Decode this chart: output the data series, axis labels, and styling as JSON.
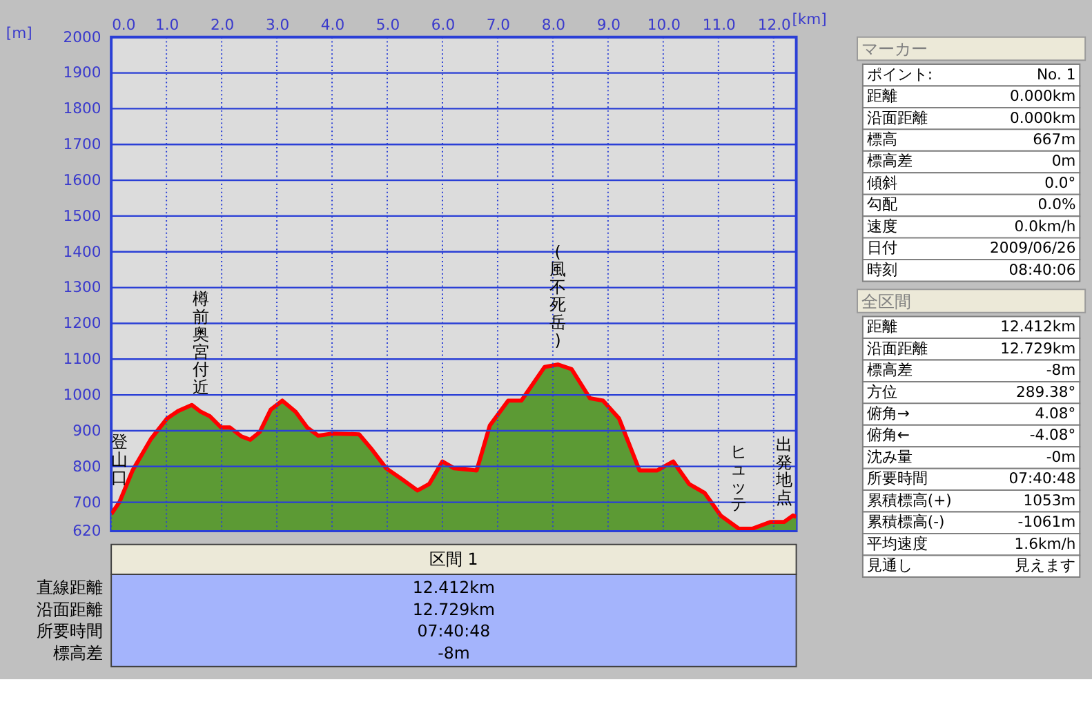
{
  "chart_data": [
    {
      "type": "area",
      "xlabel": "[km]",
      "ylabel": "[m]",
      "x": [
        0,
        0.15,
        0.39,
        0.72,
        1.01,
        1.21,
        1.46,
        1.62,
        1.79,
        1.99,
        2.15,
        2.36,
        2.52,
        2.69,
        2.89,
        3.1,
        3.34,
        3.55,
        3.75,
        4.0,
        4.49,
        4.73,
        4.98,
        5.27,
        5.55,
        5.76,
        6.0,
        6.21,
        6.62,
        6.86,
        7.19,
        7.43,
        7.68,
        7.85,
        8.09,
        8.34,
        8.67,
        8.91,
        9.2,
        9.57,
        9.89,
        10.18,
        10.47,
        10.75,
        11.04,
        11.37,
        11.61,
        11.94,
        12.19,
        12.35,
        12.41
      ],
      "series": [
        {
          "type": "area",
          "color": "#5c9a34",
          "values": [
            667,
            701,
            790,
            877,
            934,
            955,
            972,
            953,
            940,
            909,
            909,
            884,
            875,
            896,
            959,
            984,
            953,
            909,
            886,
            892,
            890,
            846,
            795,
            764,
            733,
            751,
            814,
            795,
            789,
            915,
            984,
            984,
            1040,
            1078,
            1085,
            1072,
            991,
            984,
            934,
            789,
            789,
            814,
            751,
            726,
            663,
            626,
            626,
            645,
            645,
            663,
            659
          ]
        },
        {
          "type": "line",
          "color": "#ff0000",
          "values": [
            667,
            701,
            790,
            877,
            934,
            955,
            972,
            953,
            940,
            909,
            909,
            884,
            875,
            896,
            959,
            984,
            953,
            909,
            886,
            892,
            890,
            846,
            795,
            764,
            733,
            751,
            814,
            795,
            789,
            915,
            984,
            984,
            1040,
            1078,
            1085,
            1072,
            991,
            984,
            934,
            789,
            789,
            814,
            751,
            726,
            663,
            626,
            626,
            645,
            645,
            663,
            659
          ]
        }
      ],
      "xlim": [
        0,
        12.41
      ],
      "xticks": [
        {
          "value": 0,
          "label": "0.0"
        },
        {
          "value": 1,
          "label": "1.0"
        },
        {
          "value": 2,
          "label": "2.0"
        },
        {
          "value": 3,
          "label": "3.0"
        },
        {
          "value": 4,
          "label": "4.0"
        },
        {
          "value": 5,
          "label": "5.0"
        },
        {
          "value": 6,
          "label": "6.0"
        },
        {
          "value": 7,
          "label": "7.0"
        },
        {
          "value": 8,
          "label": "8.0"
        },
        {
          "value": 9,
          "label": "9.0"
        },
        {
          "value": 10,
          "label": "10.0"
        },
        {
          "value": 11,
          "label": "11.0"
        },
        {
          "value": 12,
          "label": "12.0"
        }
      ],
      "ylim": [
        620,
        2000
      ],
      "yticks": [
        620,
        700,
        800,
        900,
        1000,
        1100,
        1200,
        1300,
        1400,
        1500,
        1600,
        1700,
        1800,
        1900,
        2000
      ],
      "grid": true,
      "annotations": [
        {
          "text": "登山口",
          "x": 0.15,
          "y": 701
        },
        {
          "text": "樽前奥宮付近",
          "x": 1.62,
          "y": 953
        },
        {
          "text": "(風不死岳)",
          "x": 8.09,
          "y": 1085
        },
        {
          "text": "ヒュッテ",
          "x": 11.37,
          "y": 626
        },
        {
          "text": "出発地点",
          "x": 12.19,
          "y": 645
        }
      ]
    },
    {
      "type": "other",
      "title": "マーカー",
      "annotations": [
        "ポイント:",
        "No. 1",
        "距離",
        "0.000km",
        "沿面距離",
        "0.000km",
        "標高",
        "667m",
        "標高差",
        "0m",
        "傾斜",
        "0.0°",
        "勾配",
        "0.0%",
        "速度",
        "0.0km/h",
        "日付",
        "2009/06/26",
        "時刻",
        "08:40:06"
      ]
    },
    {
      "type": "other",
      "title": "全区間",
      "annotations": [
        "距離",
        "12.412km",
        "沿面距離",
        "12.729km",
        "標高差",
        "-8m",
        "方位",
        "289.38°",
        "俯角→",
        "4.08°",
        "俯角←",
        "-4.08°",
        "沈み量",
        "-0m",
        "所要時間",
        "07:40:48",
        "累積標高(+)",
        "1053m",
        "累積標高(-)",
        "-1061m",
        "平均速度",
        "1.6km/h",
        "見通し",
        "見えます"
      ]
    },
    {
      "type": "other",
      "title": "区間 1",
      "annotations": [
        "直線距離",
        "12.412km",
        "沿面距離",
        "12.729km",
        "所要時間",
        "07:40:48",
        "標高差",
        "-8m"
      ]
    }
  ]
}
